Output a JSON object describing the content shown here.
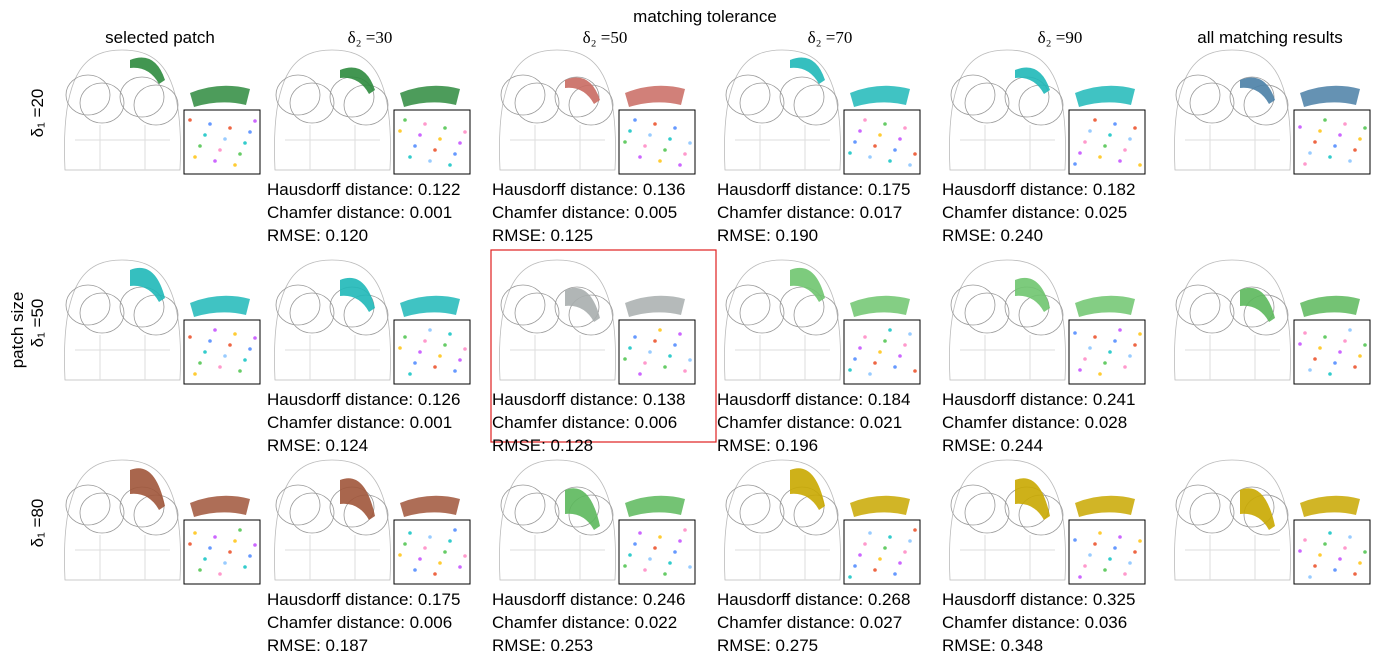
{
  "header": {
    "title": "matching tolerance",
    "side_title": "patch size"
  },
  "columns": [
    "selected patch",
    "δ₂ =30",
    "δ₂ =50",
    "δ₂ =70",
    "δ₂ =90",
    "all matching results"
  ],
  "rows": [
    {
      "label": "δ₁ =20",
      "metrics": [
        [
          "Hausdorff distance: 0.122",
          "Chamfer distance: 0.001",
          "RMSE: 0.120"
        ],
        [
          "Hausdorff distance: 0.136",
          "Chamfer distance: 0.005",
          "RMSE: 0.125"
        ],
        [
          "Hausdorff distance: 0.175",
          "Chamfer distance: 0.017",
          "RMSE: 0.190"
        ],
        [
          "Hausdorff distance: 0.182",
          "Chamfer distance: 0.025",
          "RMSE: 0.240"
        ]
      ]
    },
    {
      "label": "δ₁ =50",
      "metrics": [
        [
          "Hausdorff distance: 0.126",
          "Chamfer distance: 0.001",
          "RMSE: 0.124"
        ],
        [
          "Hausdorff distance: 0.138",
          "Chamfer distance: 0.006",
          "RMSE: 0.128"
        ],
        [
          "Hausdorff distance: 0.184",
          "Chamfer distance: 0.021",
          "RMSE: 0.196"
        ],
        [
          "Hausdorff distance: 0.241",
          "Chamfer distance: 0.028",
          "RMSE: 0.244"
        ]
      ]
    },
    {
      "label": "δ₁ =80",
      "metrics": [
        [
          "Hausdorff distance: 0.175",
          "Chamfer distance: 0.006",
          "RMSE: 0.187"
        ],
        [
          "Hausdorff distance: 0.246",
          "Chamfer distance: 0.022",
          "RMSE: 0.253"
        ],
        [
          "Hausdorff distance: 0.268",
          "Chamfer distance: 0.027",
          "RMSE: 0.275"
        ],
        [
          "Hausdorff distance: 0.325",
          "Chamfer distance: 0.036",
          "RMSE: 0.348"
        ]
      ]
    }
  ]
}
